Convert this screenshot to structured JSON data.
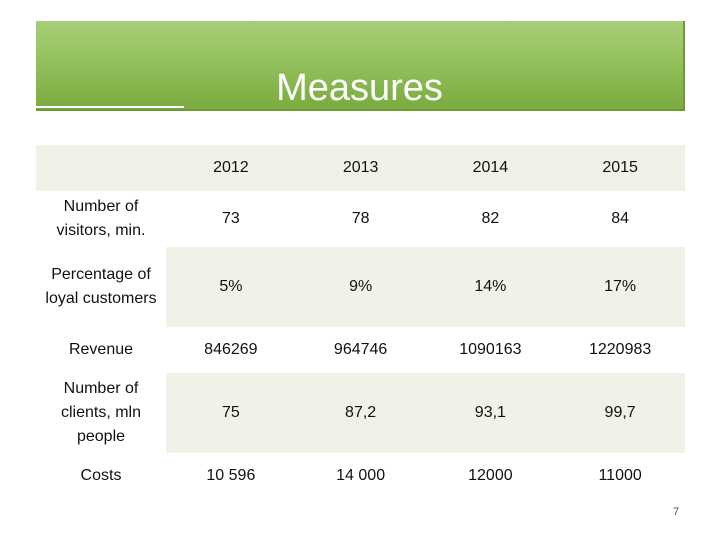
{
  "slide": {
    "title": "Measures",
    "page_number": "7",
    "colors": {
      "banner": "#94c15d",
      "band": "#f0f2e8",
      "title_text": "#ffffff"
    }
  },
  "table": {
    "headers": [
      "",
      "2012",
      "2013",
      "2014",
      "2015"
    ],
    "rows": [
      {
        "label": "Number of visitors, min.",
        "values": [
          "73",
          "78",
          "82",
          "84"
        ]
      },
      {
        "label": "Percentage of loyal customers",
        "values": [
          "5%",
          "9%",
          "14%",
          "17%"
        ]
      },
      {
        "label": "Revenue",
        "values": [
          "846269",
          "964746",
          "1090163",
          "1220983"
        ]
      },
      {
        "label": "Number of clients, mln people",
        "values": [
          "75",
          "87,2",
          "93,1",
          "99,7"
        ]
      },
      {
        "label": "Costs",
        "values": [
          "10 596",
          "14 000",
          "12000",
          "11000"
        ]
      }
    ]
  }
}
